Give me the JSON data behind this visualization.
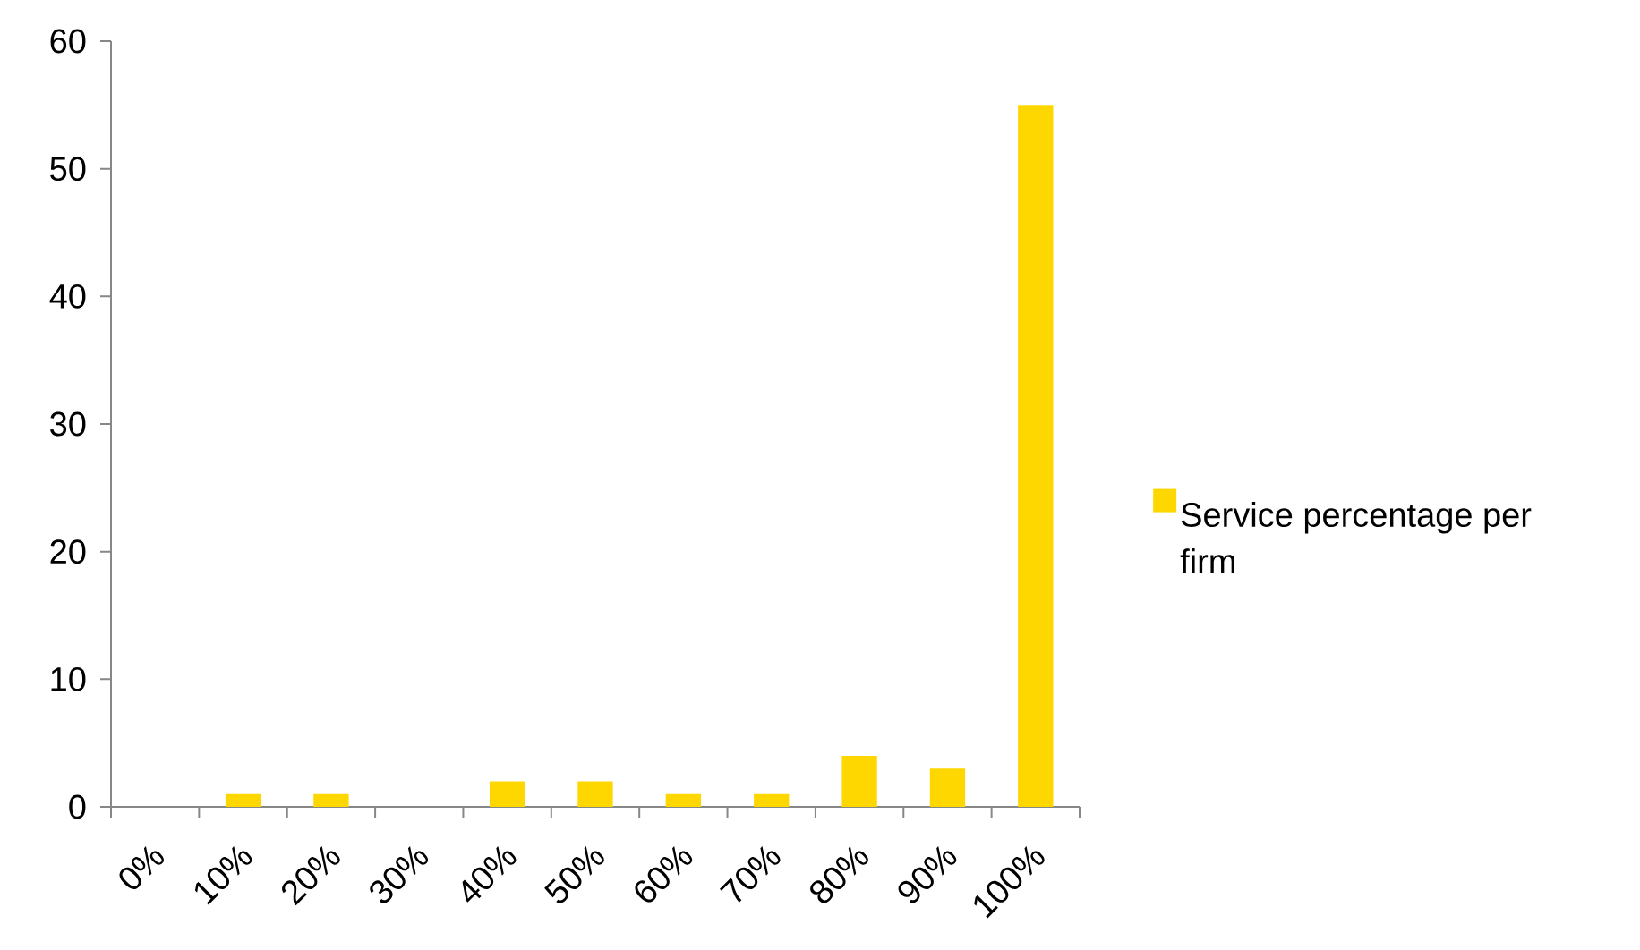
{
  "chart_data": {
    "type": "bar",
    "categories": [
      "0%",
      "10%",
      "20%",
      "30%",
      "40%",
      "50%",
      "60%",
      "70%",
      "80%",
      "90%",
      "100%"
    ],
    "series": [
      {
        "name": "Service percentage per firm",
        "color": "#ffd700",
        "values": [
          0,
          1,
          1,
          0,
          2,
          2,
          1,
          1,
          4,
          3,
          55
        ]
      }
    ],
    "ylim": [
      0,
      60
    ],
    "yticks": [
      0,
      10,
      20,
      30,
      40,
      50,
      60
    ],
    "legend": "right"
  }
}
